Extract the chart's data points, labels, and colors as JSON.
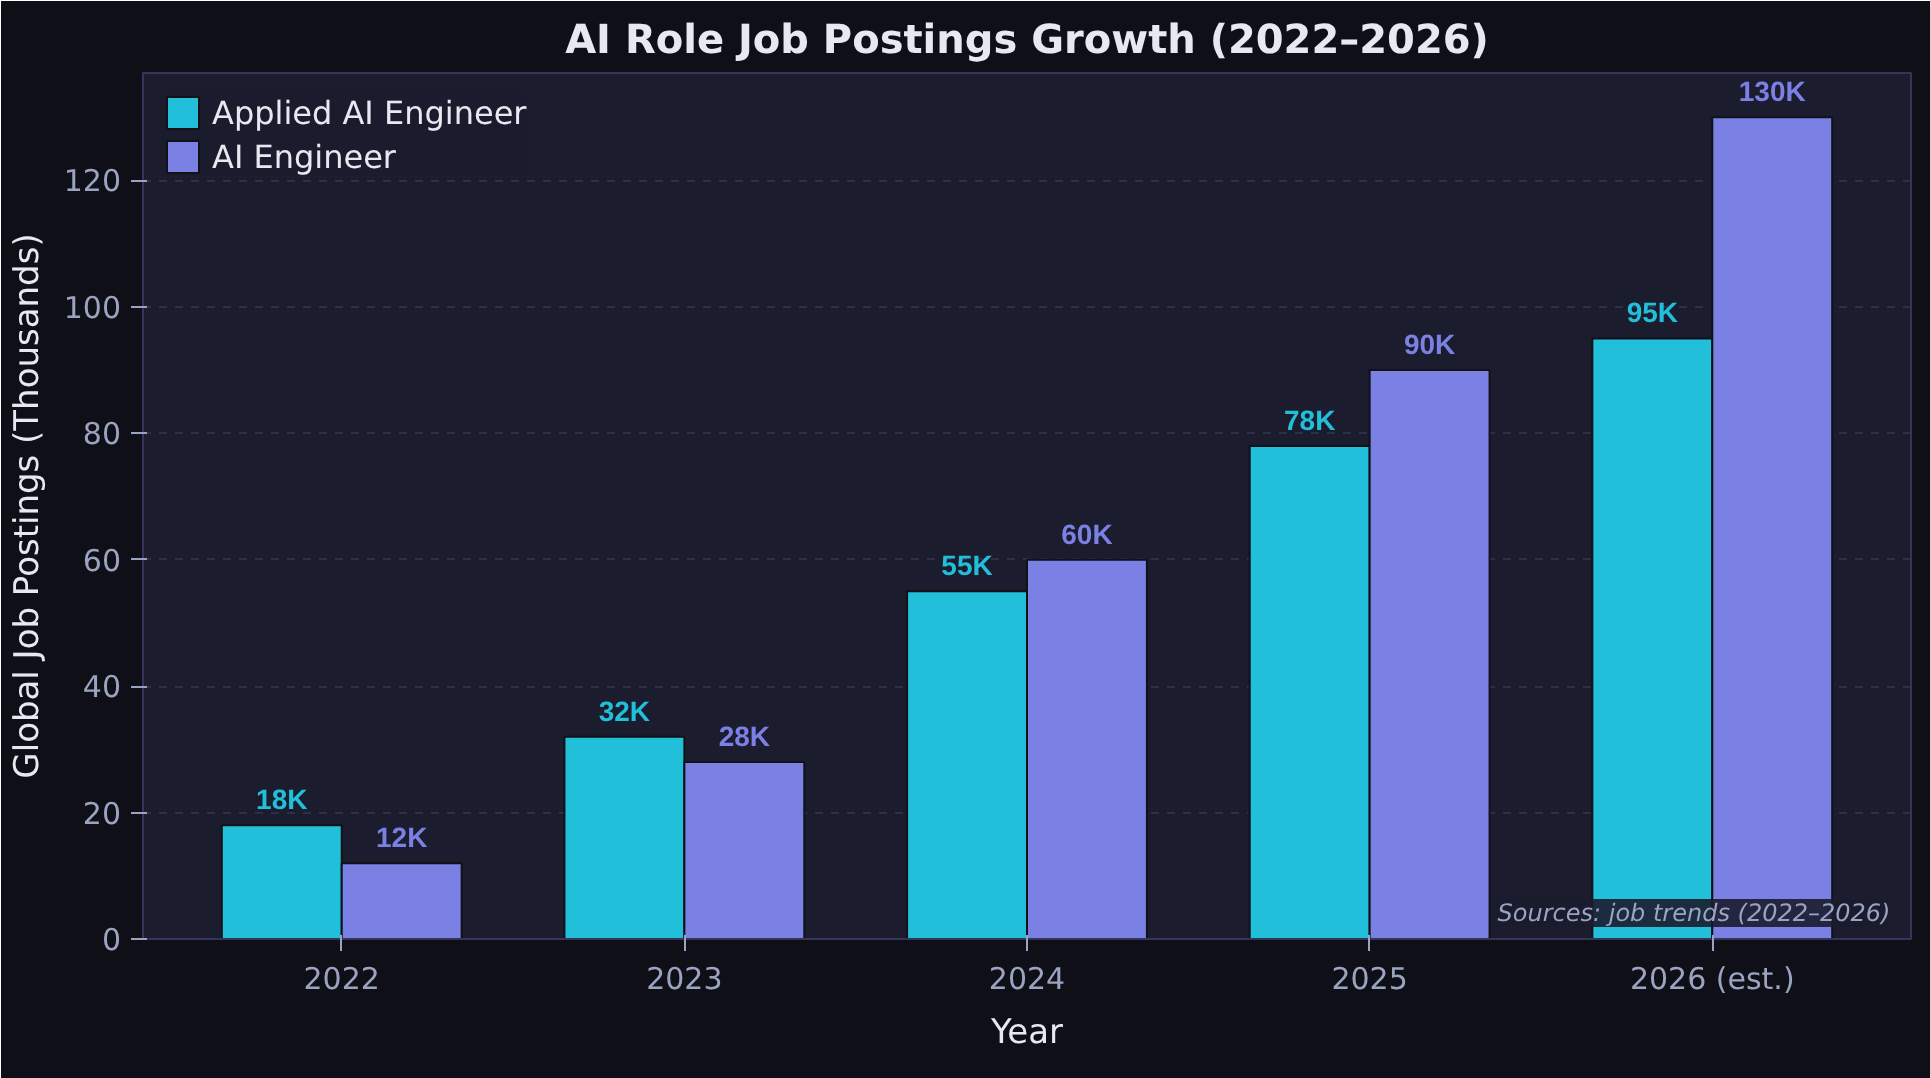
{
  "chart_data": {
    "type": "bar",
    "title": "AI Role Job Postings Growth (2022–2026)",
    "xlabel": "Year",
    "ylabel": "Global Job Postings (Thousands)",
    "categories": [
      "2022",
      "2023",
      "2024",
      "2025",
      "2026 (est.)"
    ],
    "series": [
      {
        "name": "Applied AI Engineer",
        "color": "#22bfdb",
        "values": [
          18,
          32,
          55,
          78,
          95
        ],
        "value_labels": [
          "18K",
          "32K",
          "55K",
          "78K",
          "95K"
        ]
      },
      {
        "name": "AI Engineer",
        "color": "#7a80e4",
        "values": [
          12,
          28,
          60,
          90,
          130
        ],
        "value_labels": [
          "12K",
          "28K",
          "60K",
          "90K",
          "130K"
        ]
      }
    ],
    "ylim": [
      0,
      137
    ],
    "yticks": [
      0,
      20,
      40,
      60,
      80,
      100,
      120
    ],
    "grid": "y",
    "legend": "top left",
    "annotations": [
      "Sources: job trends (2022–2026)"
    ]
  }
}
